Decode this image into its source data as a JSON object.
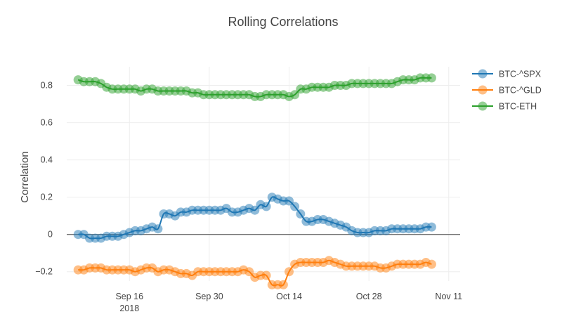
{
  "chart_data": {
    "type": "line",
    "title": "Rolling Correlations",
    "ylabel": "Correlation",
    "xlabel": "",
    "ylim": [
      -0.25,
      0.9
    ],
    "y_ticks": [
      {
        "value": -0.2,
        "label": "−0.2"
      },
      {
        "value": 0,
        "label": "0"
      },
      {
        "value": 0.2,
        "label": "0.2"
      },
      {
        "value": 0.4,
        "label": "0.4"
      },
      {
        "value": 0.6,
        "label": "0.6"
      },
      {
        "value": 0.8,
        "label": "0.8"
      }
    ],
    "x_ticks": [
      {
        "date": "2018-09-16",
        "label": "Sep 16",
        "sublabel": "2018"
      },
      {
        "date": "2018-09-30",
        "label": "Sep 30",
        "sublabel": ""
      },
      {
        "date": "2018-10-14",
        "label": "Oct 14",
        "sublabel": ""
      },
      {
        "date": "2018-10-28",
        "label": "Oct 28",
        "sublabel": ""
      },
      {
        "date": "2018-11-11",
        "label": "Nov 11",
        "sublabel": ""
      }
    ],
    "x_range": [
      "2018-09-05",
      "2018-11-13"
    ],
    "grid": true,
    "legend_position": "top-right",
    "series": [
      {
        "name": "BTC-^SPX",
        "color": "#1f77b4",
        "points": [
          [
            "2018-09-07",
            0.0
          ],
          [
            "2018-09-08",
            0.0
          ],
          [
            "2018-09-09",
            -0.02
          ],
          [
            "2018-09-10",
            -0.02
          ],
          [
            "2018-09-11",
            -0.02
          ],
          [
            "2018-09-12",
            -0.01
          ],
          [
            "2018-09-13",
            -0.01
          ],
          [
            "2018-09-14",
            -0.01
          ],
          [
            "2018-09-15",
            0.0
          ],
          [
            "2018-09-16",
            0.01
          ],
          [
            "2018-09-17",
            0.02
          ],
          [
            "2018-09-18",
            0.02
          ],
          [
            "2018-09-19",
            0.03
          ],
          [
            "2018-09-20",
            0.04
          ],
          [
            "2018-09-21",
            0.03
          ],
          [
            "2018-09-22",
            0.11
          ],
          [
            "2018-09-23",
            0.11
          ],
          [
            "2018-09-24",
            0.1
          ],
          [
            "2018-09-25",
            0.12
          ],
          [
            "2018-09-26",
            0.12
          ],
          [
            "2018-09-27",
            0.13
          ],
          [
            "2018-09-28",
            0.13
          ],
          [
            "2018-09-29",
            0.13
          ],
          [
            "2018-09-30",
            0.13
          ],
          [
            "2018-10-01",
            0.13
          ],
          [
            "2018-10-02",
            0.13
          ],
          [
            "2018-10-03",
            0.14
          ],
          [
            "2018-10-04",
            0.12
          ],
          [
            "2018-10-05",
            0.12
          ],
          [
            "2018-10-06",
            0.13
          ],
          [
            "2018-10-07",
            0.14
          ],
          [
            "2018-10-08",
            0.13
          ],
          [
            "2018-10-09",
            0.16
          ],
          [
            "2018-10-10",
            0.15
          ],
          [
            "2018-10-11",
            0.2
          ],
          [
            "2018-10-12",
            0.19
          ],
          [
            "2018-10-13",
            0.18
          ],
          [
            "2018-10-14",
            0.18
          ],
          [
            "2018-10-15",
            0.15
          ],
          [
            "2018-10-16",
            0.11
          ],
          [
            "2018-10-17",
            0.07
          ],
          [
            "2018-10-18",
            0.07
          ],
          [
            "2018-10-19",
            0.08
          ],
          [
            "2018-10-20",
            0.08
          ],
          [
            "2018-10-21",
            0.07
          ],
          [
            "2018-10-22",
            0.06
          ],
          [
            "2018-10-23",
            0.05
          ],
          [
            "2018-10-24",
            0.04
          ],
          [
            "2018-10-25",
            0.02
          ],
          [
            "2018-10-26",
            0.01
          ],
          [
            "2018-10-27",
            0.01
          ],
          [
            "2018-10-28",
            0.01
          ],
          [
            "2018-10-29",
            0.02
          ],
          [
            "2018-10-30",
            0.02
          ],
          [
            "2018-10-31",
            0.02
          ],
          [
            "2018-11-01",
            0.03
          ],
          [
            "2018-11-02",
            0.03
          ],
          [
            "2018-11-03",
            0.03
          ],
          [
            "2018-11-04",
            0.03
          ],
          [
            "2018-11-05",
            0.03
          ],
          [
            "2018-11-06",
            0.03
          ],
          [
            "2018-11-07",
            0.04
          ],
          [
            "2018-11-08",
            0.04
          ]
        ]
      },
      {
        "name": "BTC-^GLD",
        "color": "#ff7f0e",
        "points": [
          [
            "2018-09-07",
            -0.19
          ],
          [
            "2018-09-08",
            -0.19
          ],
          [
            "2018-09-09",
            -0.18
          ],
          [
            "2018-09-10",
            -0.18
          ],
          [
            "2018-09-11",
            -0.18
          ],
          [
            "2018-09-12",
            -0.19
          ],
          [
            "2018-09-13",
            -0.19
          ],
          [
            "2018-09-14",
            -0.19
          ],
          [
            "2018-09-15",
            -0.19
          ],
          [
            "2018-09-16",
            -0.19
          ],
          [
            "2018-09-17",
            -0.2
          ],
          [
            "2018-09-18",
            -0.19
          ],
          [
            "2018-09-19",
            -0.18
          ],
          [
            "2018-09-20",
            -0.18
          ],
          [
            "2018-09-21",
            -0.2
          ],
          [
            "2018-09-22",
            -0.19
          ],
          [
            "2018-09-23",
            -0.19
          ],
          [
            "2018-09-24",
            -0.2
          ],
          [
            "2018-09-25",
            -0.21
          ],
          [
            "2018-09-26",
            -0.21
          ],
          [
            "2018-09-27",
            -0.22
          ],
          [
            "2018-09-28",
            -0.2
          ],
          [
            "2018-09-29",
            -0.2
          ],
          [
            "2018-09-30",
            -0.2
          ],
          [
            "2018-10-01",
            -0.2
          ],
          [
            "2018-10-02",
            -0.2
          ],
          [
            "2018-10-03",
            -0.2
          ],
          [
            "2018-10-04",
            -0.2
          ],
          [
            "2018-10-05",
            -0.2
          ],
          [
            "2018-10-06",
            -0.19
          ],
          [
            "2018-10-07",
            -0.2
          ],
          [
            "2018-10-08",
            -0.23
          ],
          [
            "2018-10-09",
            -0.22
          ],
          [
            "2018-10-10",
            -0.22
          ],
          [
            "2018-10-11",
            -0.27
          ],
          [
            "2018-10-12",
            -0.27
          ],
          [
            "2018-10-13",
            -0.27
          ],
          [
            "2018-10-14",
            -0.2
          ],
          [
            "2018-10-15",
            -0.16
          ],
          [
            "2018-10-16",
            -0.15
          ],
          [
            "2018-10-17",
            -0.15
          ],
          [
            "2018-10-18",
            -0.15
          ],
          [
            "2018-10-19",
            -0.15
          ],
          [
            "2018-10-20",
            -0.15
          ],
          [
            "2018-10-21",
            -0.14
          ],
          [
            "2018-10-22",
            -0.15
          ],
          [
            "2018-10-23",
            -0.16
          ],
          [
            "2018-10-24",
            -0.17
          ],
          [
            "2018-10-25",
            -0.17
          ],
          [
            "2018-10-26",
            -0.17
          ],
          [
            "2018-10-27",
            -0.17
          ],
          [
            "2018-10-28",
            -0.17
          ],
          [
            "2018-10-29",
            -0.17
          ],
          [
            "2018-10-30",
            -0.18
          ],
          [
            "2018-10-31",
            -0.18
          ],
          [
            "2018-11-01",
            -0.17
          ],
          [
            "2018-11-02",
            -0.16
          ],
          [
            "2018-11-03",
            -0.16
          ],
          [
            "2018-11-04",
            -0.16
          ],
          [
            "2018-11-05",
            -0.16
          ],
          [
            "2018-11-06",
            -0.16
          ],
          [
            "2018-11-07",
            -0.15
          ],
          [
            "2018-11-08",
            -0.16
          ]
        ]
      },
      {
        "name": "BTC-ETH",
        "color": "#2ca02c",
        "points": [
          [
            "2018-09-07",
            0.83
          ],
          [
            "2018-09-08",
            0.82
          ],
          [
            "2018-09-09",
            0.82
          ],
          [
            "2018-09-10",
            0.82
          ],
          [
            "2018-09-11",
            0.81
          ],
          [
            "2018-09-12",
            0.79
          ],
          [
            "2018-09-13",
            0.78
          ],
          [
            "2018-09-14",
            0.78
          ],
          [
            "2018-09-15",
            0.78
          ],
          [
            "2018-09-16",
            0.78
          ],
          [
            "2018-09-17",
            0.78
          ],
          [
            "2018-09-18",
            0.77
          ],
          [
            "2018-09-19",
            0.78
          ],
          [
            "2018-09-20",
            0.78
          ],
          [
            "2018-09-21",
            0.77
          ],
          [
            "2018-09-22",
            0.77
          ],
          [
            "2018-09-23",
            0.77
          ],
          [
            "2018-09-24",
            0.77
          ],
          [
            "2018-09-25",
            0.77
          ],
          [
            "2018-09-26",
            0.77
          ],
          [
            "2018-09-27",
            0.76
          ],
          [
            "2018-09-28",
            0.76
          ],
          [
            "2018-09-29",
            0.75
          ],
          [
            "2018-09-30",
            0.75
          ],
          [
            "2018-10-01",
            0.75
          ],
          [
            "2018-10-02",
            0.75
          ],
          [
            "2018-10-03",
            0.75
          ],
          [
            "2018-10-04",
            0.75
          ],
          [
            "2018-10-05",
            0.75
          ],
          [
            "2018-10-06",
            0.75
          ],
          [
            "2018-10-07",
            0.75
          ],
          [
            "2018-10-08",
            0.74
          ],
          [
            "2018-10-09",
            0.74
          ],
          [
            "2018-10-10",
            0.75
          ],
          [
            "2018-10-11",
            0.75
          ],
          [
            "2018-10-12",
            0.75
          ],
          [
            "2018-10-13",
            0.75
          ],
          [
            "2018-10-14",
            0.74
          ],
          [
            "2018-10-15",
            0.75
          ],
          [
            "2018-10-16",
            0.78
          ],
          [
            "2018-10-17",
            0.78
          ],
          [
            "2018-10-18",
            0.79
          ],
          [
            "2018-10-19",
            0.79
          ],
          [
            "2018-10-20",
            0.79
          ],
          [
            "2018-10-21",
            0.79
          ],
          [
            "2018-10-22",
            0.8
          ],
          [
            "2018-10-23",
            0.8
          ],
          [
            "2018-10-24",
            0.8
          ],
          [
            "2018-10-25",
            0.81
          ],
          [
            "2018-10-26",
            0.81
          ],
          [
            "2018-10-27",
            0.81
          ],
          [
            "2018-10-28",
            0.81
          ],
          [
            "2018-10-29",
            0.81
          ],
          [
            "2018-10-30",
            0.81
          ],
          [
            "2018-10-31",
            0.81
          ],
          [
            "2018-11-01",
            0.81
          ],
          [
            "2018-11-02",
            0.82
          ],
          [
            "2018-11-03",
            0.83
          ],
          [
            "2018-11-04",
            0.83
          ],
          [
            "2018-11-05",
            0.83
          ],
          [
            "2018-11-06",
            0.84
          ],
          [
            "2018-11-07",
            0.84
          ],
          [
            "2018-11-08",
            0.84
          ]
        ]
      }
    ]
  }
}
